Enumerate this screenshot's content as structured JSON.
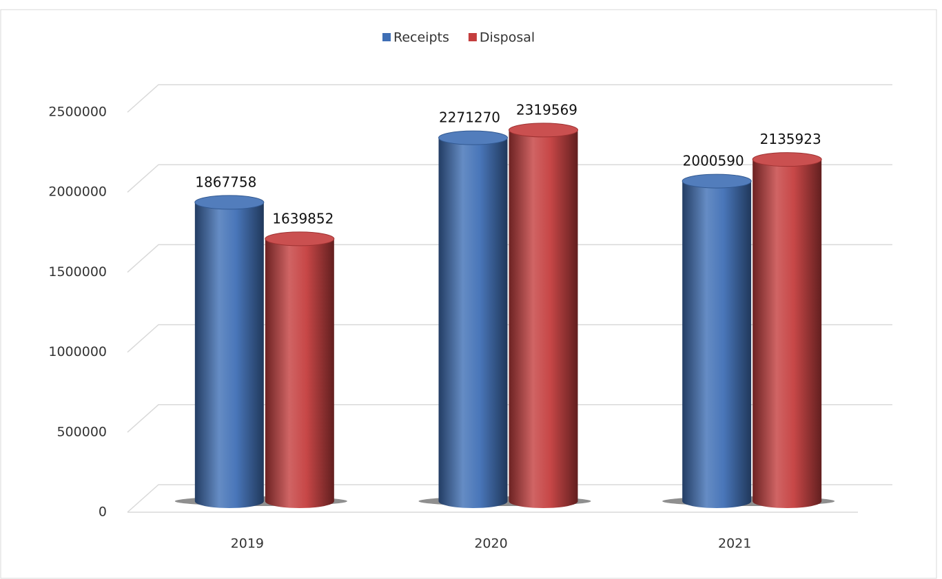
{
  "chart_data": {
    "type": "bar3d",
    "categories": [
      "2019",
      "2020",
      "2021"
    ],
    "series": [
      {
        "name": "Receipts",
        "color": "#3f6fb5",
        "values": [
          1867758,
          2271270,
          2000590
        ]
      },
      {
        "name": "Disposal",
        "color": "#c43d3d",
        "values": [
          1639852,
          2319569,
          2135923
        ]
      }
    ],
    "ylim": [
      0,
      2500000
    ],
    "yticks": [
      0,
      500000,
      1000000,
      1500000,
      2000000,
      2500000
    ],
    "grid": true,
    "legend": "top"
  }
}
